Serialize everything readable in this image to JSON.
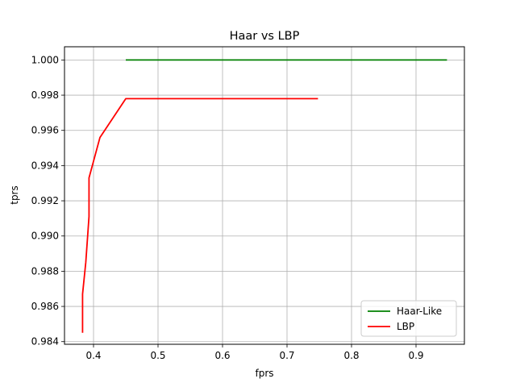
{
  "chart_data": {
    "type": "line",
    "title": "Haar vs LBP",
    "xlabel": "fprs",
    "ylabel": "tprs",
    "xlim": [
      0.355,
      0.975
    ],
    "ylim": [
      0.98385,
      1.00075
    ],
    "xticks": [
      0.4,
      0.5,
      0.6,
      0.7,
      0.8,
      0.9
    ],
    "xtick_labels": [
      "0.4",
      "0.5",
      "0.6",
      "0.7",
      "0.8",
      "0.9"
    ],
    "yticks": [
      0.984,
      0.986,
      0.988,
      0.99,
      0.992,
      0.994,
      0.996,
      0.998,
      1.0
    ],
    "ytick_labels": [
      "0.984",
      "0.986",
      "0.988",
      "0.990",
      "0.992",
      "0.994",
      "0.996",
      "0.998",
      "1.000"
    ],
    "grid": true,
    "legend_position": "lower-right",
    "series": [
      {
        "name": "Haar-Like",
        "color": "#008000",
        "x": [
          0.45,
          0.948
        ],
        "y": [
          1.0,
          1.0
        ]
      },
      {
        "name": "LBP",
        "color": "#ff0000",
        "x": [
          0.383,
          0.383,
          0.388,
          0.393,
          0.393,
          0.41,
          0.45,
          0.748
        ],
        "y": [
          0.9845,
          0.9867,
          0.9885,
          0.9911,
          0.9933,
          0.9956,
          0.9978,
          0.9978
        ]
      }
    ]
  }
}
